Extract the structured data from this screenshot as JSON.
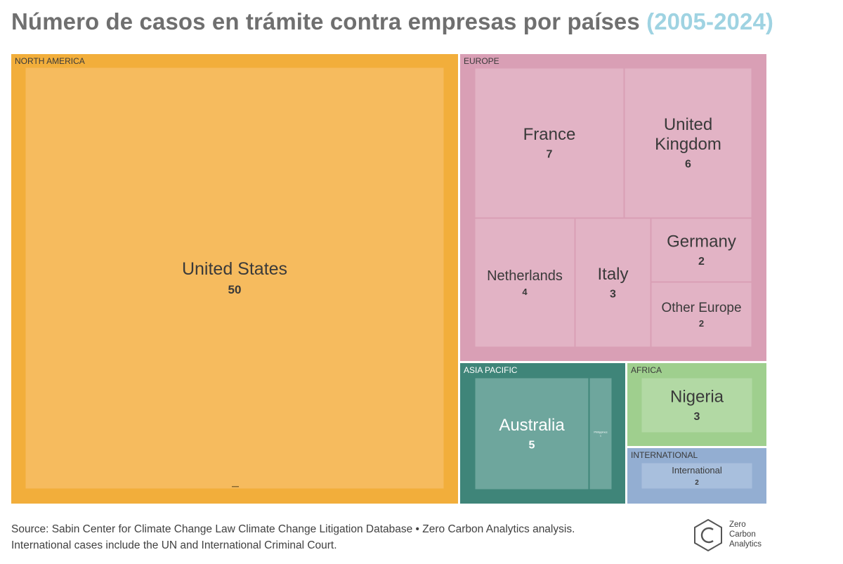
{
  "title": {
    "main": "Número de casos en trámite contra empresas por países",
    "years": "(2005-2024)"
  },
  "footer": {
    "line1": "Source: Sabin Center for Climate Change Law Climate Change Litigation Database • Zero Carbon Analytics analysis.",
    "line2": "International cases include the UN and International Criminal Court."
  },
  "logo": {
    "line1": "Zero",
    "line2": "Carbon",
    "line3": "Analytics",
    "icon": "hexagon-c-icon"
  },
  "chart_data": {
    "type": "treemap",
    "regions": [
      {
        "name": "NORTH AMERICA",
        "color": "#f2ae3b",
        "leafColor": "#f6bb5e",
        "countries": [
          {
            "name": "United States",
            "value": 50
          }
        ]
      },
      {
        "name": "EUROPE",
        "color": "#d99fb5",
        "leafColor": "#e2b3c5",
        "countries": [
          {
            "name": "France",
            "value": 7
          },
          {
            "name": "United Kingdom",
            "value": 6
          },
          {
            "name": "Netherlands",
            "value": 4
          },
          {
            "name": "Italy",
            "value": 3
          },
          {
            "name": "Germany",
            "value": 2
          },
          {
            "name": "Other Europe",
            "value": 2
          }
        ]
      },
      {
        "name": "ASIA PACIFIC",
        "color": "#3f8579",
        "leafColor": "#6ea69d",
        "countries": [
          {
            "name": "Australia",
            "value": 5
          },
          {
            "name": "Philippines",
            "value": 1
          }
        ]
      },
      {
        "name": "AFRICA",
        "color": "#9fcf8e",
        "leafColor": "#b2d9a4",
        "countries": [
          {
            "name": "Nigeria",
            "value": 3
          }
        ]
      },
      {
        "name": "INTERNATIONAL",
        "color": "#93aed2",
        "leafColor": "#a8bfdd",
        "countries": [
          {
            "name": "International",
            "value": 2
          }
        ]
      }
    ]
  }
}
